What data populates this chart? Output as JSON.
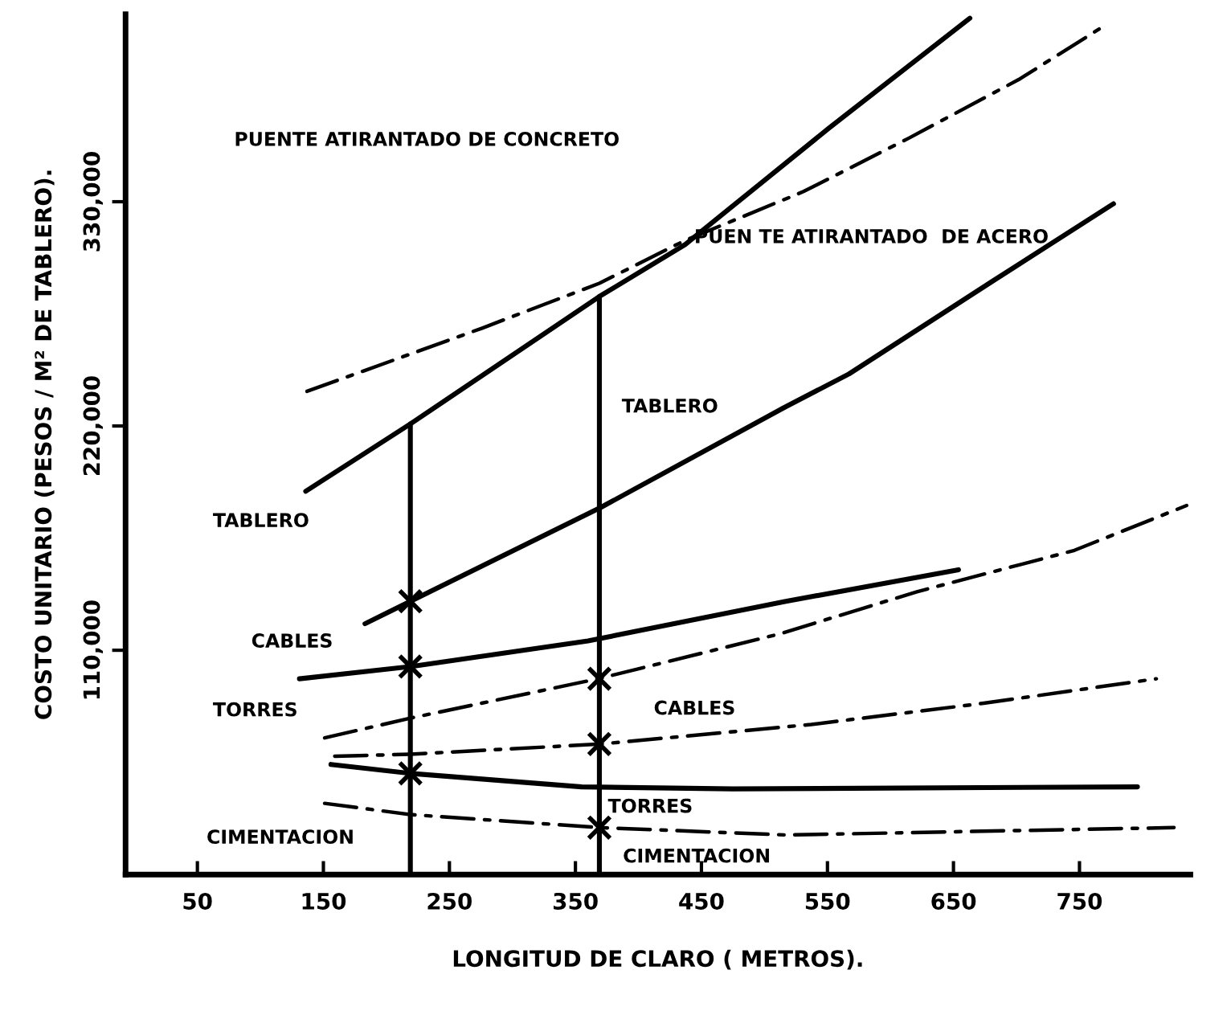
{
  "chart_data": {
    "type": "line",
    "xlabel": "LONGITUD DE CLARO ( METROS).",
    "ylabel": "COSTO UNITARIO (PESOS / M² DE TABLERO).",
    "xlim": [
      -7,
      838
    ],
    "ylim": [
      0,
      422000
    ],
    "xticks": [
      50,
      150,
      250,
      350,
      450,
      550,
      650,
      750
    ],
    "yticks": [
      {
        "value": 110000,
        "label": "110,000"
      },
      {
        "value": 220000,
        "label": "220,000"
      },
      {
        "value": 330000,
        "label": "330,000"
      }
    ],
    "grid": false,
    "legend": false,
    "marker": "none",
    "series": [
      {
        "color": "#000000",
        "line_style": "solid",
        "x": [
          136,
          219,
          369,
          437,
          489,
          551,
          663
        ],
        "values": [
          188000,
          221000,
          283500,
          309000,
          335000,
          366000,
          420000
        ]
      },
      {
        "color": "#000000",
        "line_style": "dashdot",
        "x": [
          137,
          276,
          369,
          437,
          531,
          614,
          702,
          769
        ],
        "values": [
          237000,
          268000,
          290000,
          311000,
          335000,
          361000,
          390000,
          416000
        ]
      },
      {
        "color": "#000000",
        "line_style": "solid",
        "x": [
          183,
          219,
          370,
          514,
          567,
          681,
          777
        ],
        "values": [
          123000,
          134000,
          180000,
          228500,
          245500,
          291000,
          329000
        ]
      },
      {
        "color": "#000000",
        "line_style": "solid",
        "x": [
          131,
          219,
          360,
          517,
          654
        ],
        "values": [
          96000,
          102000,
          114600,
          134000,
          149500
        ]
      },
      {
        "color": "#000000",
        "line_style": "dashdot",
        "x": [
          151,
          219,
          368,
          512,
          621,
          746,
          835
        ],
        "values": [
          67000,
          76700,
          96000,
          118000,
          138700,
          159000,
          181000
        ]
      },
      {
        "color": "#000000",
        "line_style": "dashdot",
        "x": [
          159,
          219,
          370,
          537,
          674,
          811
        ],
        "values": [
          58000,
          59000,
          64000,
          73600,
          84000,
          96000
        ]
      },
      {
        "color": "#000000",
        "line_style": "solid",
        "x": [
          156,
          219,
          355,
          475,
          796
        ],
        "values": [
          54000,
          49600,
          43000,
          42000,
          43000
        ]
      },
      {
        "color": "#000000",
        "line_style": "dashdot",
        "x": [
          151,
          219,
          370,
          517,
          825
        ],
        "values": [
          34900,
          29400,
          23000,
          19400,
          23000
        ]
      },
      {
        "color": "#000000",
        "line_style": "solid",
        "x": [
          219,
          219
        ],
        "values": [
          0,
          221000
        ]
      },
      {
        "color": "#000000",
        "line_style": "solid",
        "x": [
          369,
          369
        ],
        "values": [
          0,
          283500
        ]
      },
      {
        "type": "scatter",
        "color": "#000000",
        "marker": "cross",
        "x": [
          219,
          219,
          219,
          369,
          369,
          369
        ],
        "values": [
          134000,
          102000,
          49600,
          96000,
          64000,
          23000
        ]
      }
    ],
    "annotations": [
      "PUENTE ATIRANTADO DE CONCRETO",
      "PUEN TE ATIRANTADO  DE ACERO",
      "TABLERO",
      "TABLERO",
      "CABLES",
      "CABLES",
      "TORRES",
      "TORRES",
      "CIMENTACION",
      "CIMENTACION"
    ]
  }
}
